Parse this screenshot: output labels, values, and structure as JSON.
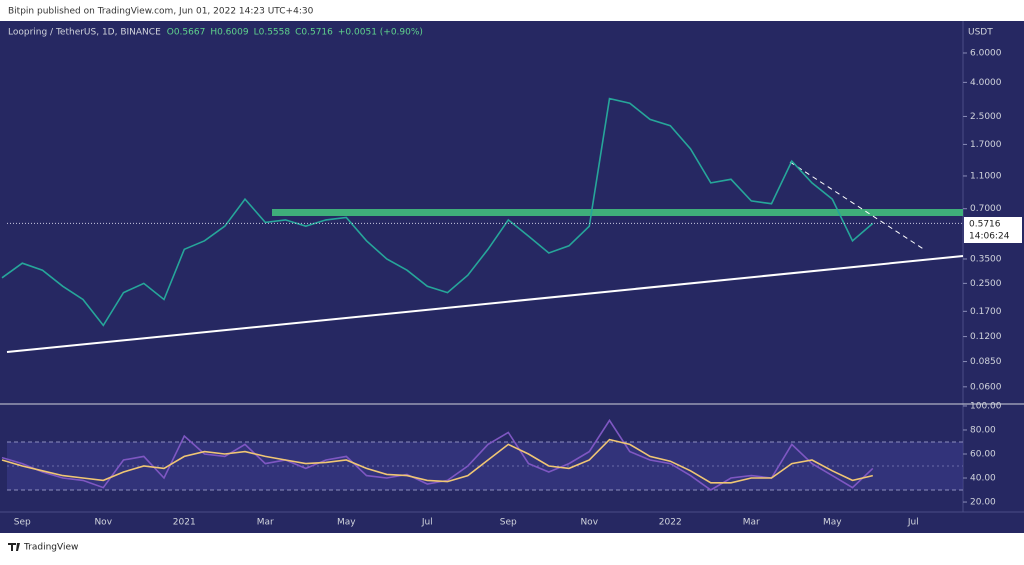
{
  "header": {
    "publisher": "Bitpin published on TradingView.com, Jun 01, 2022 14:23 UTC+4:30",
    "footer": "TradingView"
  },
  "chart_data": [
    {
      "type": "line",
      "symbol": "Loopring / TetherUS, 1D, BINANCE",
      "ohlc": [
        "O0.5667",
        "H0.6009",
        "L0.5558",
        "C0.5716",
        "+0.0051 (+0.90%)"
      ],
      "currency": "USDT",
      "last_price": 0.5716,
      "countdown": "14:06:24",
      "log_scale": true,
      "color": "#26a69a",
      "categories": [
        null,
        "Sep",
        null,
        null,
        null,
        "Nov",
        null,
        null,
        null,
        "2021",
        null,
        null,
        null,
        "Mar",
        null,
        null,
        null,
        "May",
        null,
        null,
        null,
        "Jul",
        null,
        null,
        null,
        "Sep",
        null,
        null,
        null,
        "Nov",
        null,
        null,
        null,
        "2022",
        null,
        null,
        null,
        "Mar",
        null,
        null,
        null,
        "May",
        null,
        null,
        null,
        "Jul",
        null,
        null
      ],
      "values": [
        0.27,
        0.33,
        0.3,
        0.24,
        0.2,
        0.14,
        0.22,
        0.25,
        0.2,
        0.4,
        0.45,
        0.55,
        0.8,
        0.58,
        0.6,
        0.55,
        0.6,
        0.62,
        0.45,
        0.35,
        0.3,
        0.24,
        0.22,
        0.28,
        0.4,
        0.6,
        0.48,
        0.38,
        0.42,
        0.55,
        3.2,
        3.0,
        2.4,
        2.2,
        1.6,
        1.0,
        1.05,
        0.78,
        0.75,
        1.35,
        1.0,
        0.8,
        0.45,
        0.5716,
        null,
        null,
        null,
        null
      ],
      "ylim": [
        0.048,
        9.2
      ],
      "yticks": [
        {
          "value": 6,
          "label": "6.0000"
        },
        {
          "value": 4,
          "label": "4.0000"
        },
        {
          "value": 2.5,
          "label": "2.5000"
        },
        {
          "value": 1.7,
          "label": "1.7000"
        },
        {
          "value": 1.1,
          "label": "1.1000"
        },
        {
          "value": 0.7,
          "label": "0.7000"
        },
        {
          "value": 0.35,
          "label": "0.3500"
        },
        {
          "value": 0.25,
          "label": "0.2500"
        },
        {
          "value": 0.17,
          "label": "0.1700"
        },
        {
          "value": 0.12,
          "label": "0.1200"
        },
        {
          "value": 0.085,
          "label": "0.0850"
        },
        {
          "value": 0.06,
          "label": "0.0600"
        }
      ]
    },
    {
      "type": "line",
      "series": [
        {
          "color": "#7e57c2",
          "values": [
            57,
            52,
            45,
            40,
            38,
            32,
            55,
            58,
            40,
            75,
            60,
            58,
            68,
            52,
            55,
            48,
            55,
            58,
            42,
            40,
            43,
            35,
            38,
            50,
            68,
            78,
            52,
            45,
            52,
            62,
            88,
            62,
            55,
            52,
            42,
            30,
            40,
            42,
            40,
            68,
            52,
            42,
            32,
            48,
            null,
            null,
            null,
            null
          ]
        },
        {
          "color": "#f0c674",
          "values": [
            55,
            50,
            46,
            42,
            40,
            38,
            45,
            50,
            48,
            58,
            62,
            60,
            62,
            58,
            55,
            52,
            53,
            55,
            48,
            43,
            42,
            38,
            37,
            42,
            55,
            68,
            60,
            50,
            48,
            55,
            72,
            68,
            58,
            54,
            46,
            36,
            36,
            40,
            40,
            52,
            55,
            46,
            38,
            42,
            null,
            null,
            null,
            null
          ]
        }
      ],
      "ylim": [
        11.7,
        100.8
      ],
      "yticks": [
        {
          "value": 100,
          "label": "100.00"
        },
        {
          "value": 80,
          "label": "80.00"
        },
        {
          "value": 60,
          "label": "60.00"
        },
        {
          "value": 40,
          "label": "40.00"
        },
        {
          "value": 20,
          "label": "20.00"
        }
      ]
    }
  ]
}
